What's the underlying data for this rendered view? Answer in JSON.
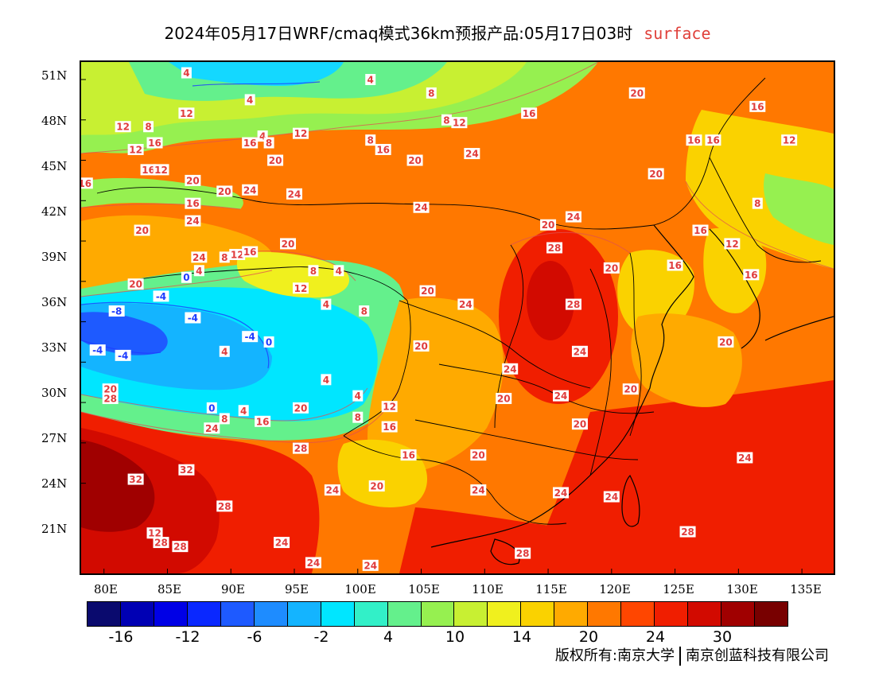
{
  "title": {
    "main": "2024年05月17日WRF/cmaq模式36km预报产品:05月17日03时",
    "tag": "surface"
  },
  "axes": {
    "lat_labels": [
      "51N",
      "48N",
      "45N",
      "42N",
      "39N",
      "36N",
      "33N",
      "30N",
      "27N",
      "24N",
      "21N"
    ],
    "lon_labels": [
      "80E",
      "85E",
      "90E",
      "95E",
      "100E",
      "105E",
      "110E",
      "115E",
      "120E",
      "125E",
      "130E",
      "135E"
    ]
  },
  "colorbar": {
    "colors": [
      "#0a0a6e",
      "#0000b4",
      "#0000e6",
      "#0a28ff",
      "#1e5aff",
      "#1e8cff",
      "#14b4ff",
      "#00e6ff",
      "#32f0c8",
      "#64f08c",
      "#96f050",
      "#c8f032",
      "#f0f01e",
      "#fad200",
      "#ffaa00",
      "#ff7800",
      "#ff4600",
      "#f01e00",
      "#d20a00",
      "#a00000",
      "#780000"
    ],
    "labels": [
      "-16",
      "-12",
      "-6",
      "-2",
      "4",
      "10",
      "14",
      "20",
      "24",
      "30"
    ]
  },
  "contour_labels": [
    {
      "text": "4",
      "lon": 86.5,
      "lat": 51.5
    },
    {
      "text": "4",
      "lon": 101.0,
      "lat": 51.0
    },
    {
      "text": "8",
      "lon": 105.8,
      "lat": 50.0
    },
    {
      "text": "4",
      "lon": 91.5,
      "lat": 49.5
    },
    {
      "text": "12",
      "lon": 86.5,
      "lat": 48.5
    },
    {
      "text": "12",
      "lon": 81.5,
      "lat": 47.5
    },
    {
      "text": "8",
      "lon": 83.5,
      "lat": 47.5
    },
    {
      "text": "8",
      "lon": 107.0,
      "lat": 48.0
    },
    {
      "text": "12",
      "lon": 108.0,
      "lat": 47.8
    },
    {
      "text": "16",
      "lon": 113.5,
      "lat": 48.5
    },
    {
      "text": "20",
      "lon": 122.0,
      "lat": 50.0
    },
    {
      "text": "16",
      "lon": 131.5,
      "lat": 49.0
    },
    {
      "text": "12",
      "lon": 95.5,
      "lat": 47.0
    },
    {
      "text": "4",
      "lon": 92.5,
      "lat": 46.8
    },
    {
      "text": "8",
      "lon": 101.0,
      "lat": 46.5
    },
    {
      "text": "16",
      "lon": 84.0,
      "lat": 46.3
    },
    {
      "text": "16",
      "lon": 91.5,
      "lat": 46.3
    },
    {
      "text": "8",
      "lon": 93.0,
      "lat": 46.3
    },
    {
      "text": "16",
      "lon": 102.0,
      "lat": 45.8
    },
    {
      "text": "16",
      "lon": 126.5,
      "lat": 46.5
    },
    {
      "text": "16",
      "lon": 128.0,
      "lat": 46.5
    },
    {
      "text": "12",
      "lon": 134.0,
      "lat": 46.5
    },
    {
      "text": "12",
      "lon": 82.5,
      "lat": 45.8
    },
    {
      "text": "20",
      "lon": 93.5,
      "lat": 45.0
    },
    {
      "text": "20",
      "lon": 104.5,
      "lat": 45.0
    },
    {
      "text": "24",
      "lon": 109.0,
      "lat": 45.5
    },
    {
      "text": "16",
      "lon": 83.5,
      "lat": 44.3
    },
    {
      "text": "12",
      "lon": 84.5,
      "lat": 44.3
    },
    {
      "text": "20",
      "lon": 123.5,
      "lat": 44.0
    },
    {
      "text": "16",
      "lon": 78.5,
      "lat": 43.3
    },
    {
      "text": "20",
      "lon": 87.0,
      "lat": 43.5
    },
    {
      "text": "20",
      "lon": 89.5,
      "lat": 42.7
    },
    {
      "text": "24",
      "lon": 91.5,
      "lat": 42.8
    },
    {
      "text": "24",
      "lon": 95.0,
      "lat": 42.5
    },
    {
      "text": "16",
      "lon": 87.0,
      "lat": 41.8
    },
    {
      "text": "24",
      "lon": 105.0,
      "lat": 41.5
    },
    {
      "text": "8",
      "lon": 131.5,
      "lat": 41.8
    },
    {
      "text": "24",
      "lon": 87.0,
      "lat": 40.5
    },
    {
      "text": "24",
      "lon": 117.0,
      "lat": 40.8
    },
    {
      "text": "20",
      "lon": 115.0,
      "lat": 40.2
    },
    {
      "text": "20",
      "lon": 83.0,
      "lat": 39.8
    },
    {
      "text": "16",
      "lon": 127.0,
      "lat": 39.8
    },
    {
      "text": "12",
      "lon": 129.5,
      "lat": 38.8
    },
    {
      "text": "20",
      "lon": 94.5,
      "lat": 38.8
    },
    {
      "text": "28",
      "lon": 115.5,
      "lat": 38.5
    },
    {
      "text": "24",
      "lon": 87.5,
      "lat": 37.8
    },
    {
      "text": "8",
      "lon": 89.5,
      "lat": 37.8
    },
    {
      "text": "12",
      "lon": 90.5,
      "lat": 38.0
    },
    {
      "text": "16",
      "lon": 91.5,
      "lat": 38.2
    },
    {
      "text": "20",
      "lon": 120.0,
      "lat": 37.0
    },
    {
      "text": "16",
      "lon": 125.0,
      "lat": 37.2
    },
    {
      "text": "4",
      "lon": 87.5,
      "lat": 36.8
    },
    {
      "text": "0",
      "lon": 86.5,
      "lat": 36.3
    },
    {
      "text": "8",
      "lon": 96.5,
      "lat": 36.8
    },
    {
      "text": "4",
      "lon": 98.5,
      "lat": 36.8
    },
    {
      "text": "16",
      "lon": 131.0,
      "lat": 36.5
    },
    {
      "text": "20",
      "lon": 82.5,
      "lat": 35.8
    },
    {
      "text": "12",
      "lon": 95.5,
      "lat": 35.5
    },
    {
      "text": "20",
      "lon": 105.5,
      "lat": 35.3
    },
    {
      "text": "-4",
      "lon": 84.5,
      "lat": 34.9
    },
    {
      "text": "24",
      "lon": 108.5,
      "lat": 34.3
    },
    {
      "text": "28",
      "lon": 117.0,
      "lat": 34.3
    },
    {
      "text": "4",
      "lon": 97.5,
      "lat": 34.3
    },
    {
      "text": "-8",
      "lon": 81.0,
      "lat": 33.8
    },
    {
      "text": "8",
      "lon": 100.5,
      "lat": 33.8
    },
    {
      "text": "-4",
      "lon": 87.0,
      "lat": 33.3
    },
    {
      "text": "-4",
      "lon": 91.5,
      "lat": 31.9
    },
    {
      "text": "0",
      "lon": 93.0,
      "lat": 31.5
    },
    {
      "text": "20",
      "lon": 105.0,
      "lat": 31.2
    },
    {
      "text": "20",
      "lon": 129.0,
      "lat": 31.5
    },
    {
      "text": "-4",
      "lon": 79.5,
      "lat": 30.9
    },
    {
      "text": "4",
      "lon": 89.5,
      "lat": 30.8
    },
    {
      "text": "24",
      "lon": 117.5,
      "lat": 30.8
    },
    {
      "text": "-4",
      "lon": 81.5,
      "lat": 30.5
    },
    {
      "text": "24",
      "lon": 112.0,
      "lat": 29.5
    },
    {
      "text": "4",
      "lon": 97.5,
      "lat": 28.7
    },
    {
      "text": "20",
      "lon": 80.5,
      "lat": 28.0
    },
    {
      "text": "28",
      "lon": 80.5,
      "lat": 27.3
    },
    {
      "text": "20",
      "lon": 121.5,
      "lat": 28.0
    },
    {
      "text": "4",
      "lon": 100.0,
      "lat": 27.5
    },
    {
      "text": "20",
      "lon": 111.5,
      "lat": 27.3
    },
    {
      "text": "24",
      "lon": 116.0,
      "lat": 27.5
    },
    {
      "text": "0",
      "lon": 88.5,
      "lat": 26.6
    },
    {
      "text": "4",
      "lon": 91.0,
      "lat": 26.4
    },
    {
      "text": "12",
      "lon": 102.5,
      "lat": 26.7
    },
    {
      "text": "20",
      "lon": 95.5,
      "lat": 26.6
    },
    {
      "text": "8",
      "lon": 89.5,
      "lat": 25.8
    },
    {
      "text": "16",
      "lon": 92.5,
      "lat": 25.6
    },
    {
      "text": "8",
      "lon": 100.0,
      "lat": 25.9
    },
    {
      "text": "16",
      "lon": 102.5,
      "lat": 25.2
    },
    {
      "text": "20",
      "lon": 117.5,
      "lat": 25.4
    },
    {
      "text": "24",
      "lon": 88.5,
      "lat": 25.1
    },
    {
      "text": "28",
      "lon": 95.5,
      "lat": 23.6
    },
    {
      "text": "16",
      "lon": 104.0,
      "lat": 23.1
    },
    {
      "text": "20",
      "lon": 109.5,
      "lat": 23.1
    },
    {
      "text": "24",
      "lon": 130.5,
      "lat": 22.9
    },
    {
      "text": "32",
      "lon": 86.5,
      "lat": 22.0
    },
    {
      "text": "32",
      "lon": 82.5,
      "lat": 21.3
    },
    {
      "text": "24",
      "lon": 98.0,
      "lat": 20.5
    },
    {
      "text": "20",
      "lon": 101.5,
      "lat": 20.8
    },
    {
      "text": "24",
      "lon": 109.5,
      "lat": 20.5
    },
    {
      "text": "24",
      "lon": 116.0,
      "lat": 20.3
    },
    {
      "text": "24",
      "lon": 120.0,
      "lat": 20.0
    },
    {
      "text": "28",
      "lon": 89.5,
      "lat": 19.3
    },
    {
      "text": "12",
      "lon": 84.0,
      "lat": 17.3
    },
    {
      "text": "28",
      "lon": 126.0,
      "lat": 17.4
    },
    {
      "text": "28",
      "lon": 84.5,
      "lat": 16.6
    },
    {
      "text": "28",
      "lon": 86.0,
      "lat": 16.3
    },
    {
      "text": "24",
      "lon": 94.0,
      "lat": 16.6
    },
    {
      "text": "28",
      "lon": 113.0,
      "lat": 15.8
    },
    {
      "text": "24",
      "lon": 96.5,
      "lat": 15.1
    },
    {
      "text": "24",
      "lon": 101.0,
      "lat": 14.9
    }
  ],
  "copyright": {
    "left": "版权所有:南京大学",
    "right": "南京创蓝科技有限公司"
  }
}
